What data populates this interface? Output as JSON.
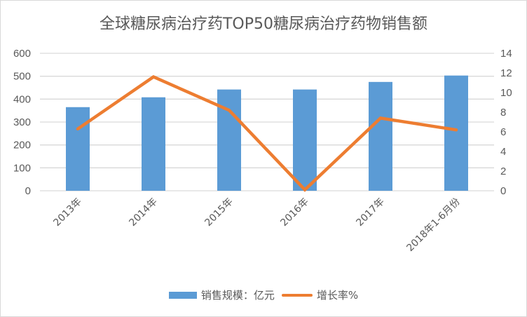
{
  "chart_data": {
    "type": "bar+line",
    "title": "全球糖尿病治疗药TOP50糖尿病治疗药物销售额",
    "categories": [
      "2013年",
      "2014年",
      "2015年",
      "2016年",
      "2017年",
      "2018年1-6月份"
    ],
    "series": [
      {
        "name": "销售规模：亿元",
        "type": "bar",
        "axis": "left",
        "color": "#5b9bd5",
        "values": [
          365,
          408,
          442,
          442,
          475,
          503
        ]
      },
      {
        "name": "增长率%",
        "type": "line",
        "axis": "right",
        "color": "#ed7d31",
        "values": [
          6.3,
          11.6,
          8.2,
          0.1,
          7.4,
          6.2
        ]
      }
    ],
    "y_left": {
      "min": 0,
      "max": 600,
      "step": 100,
      "ticks": [
        "0",
        "100",
        "200",
        "300",
        "400",
        "500",
        "600"
      ]
    },
    "y_right": {
      "min": 0,
      "max": 14,
      "step": 2,
      "ticks": [
        "0",
        "2",
        "4",
        "6",
        "8",
        "10",
        "12",
        "14"
      ]
    },
    "grid": true,
    "legend_position": "bottom"
  },
  "legend": {
    "bar_label": "销售规模：亿元",
    "line_label": "增长率%"
  }
}
